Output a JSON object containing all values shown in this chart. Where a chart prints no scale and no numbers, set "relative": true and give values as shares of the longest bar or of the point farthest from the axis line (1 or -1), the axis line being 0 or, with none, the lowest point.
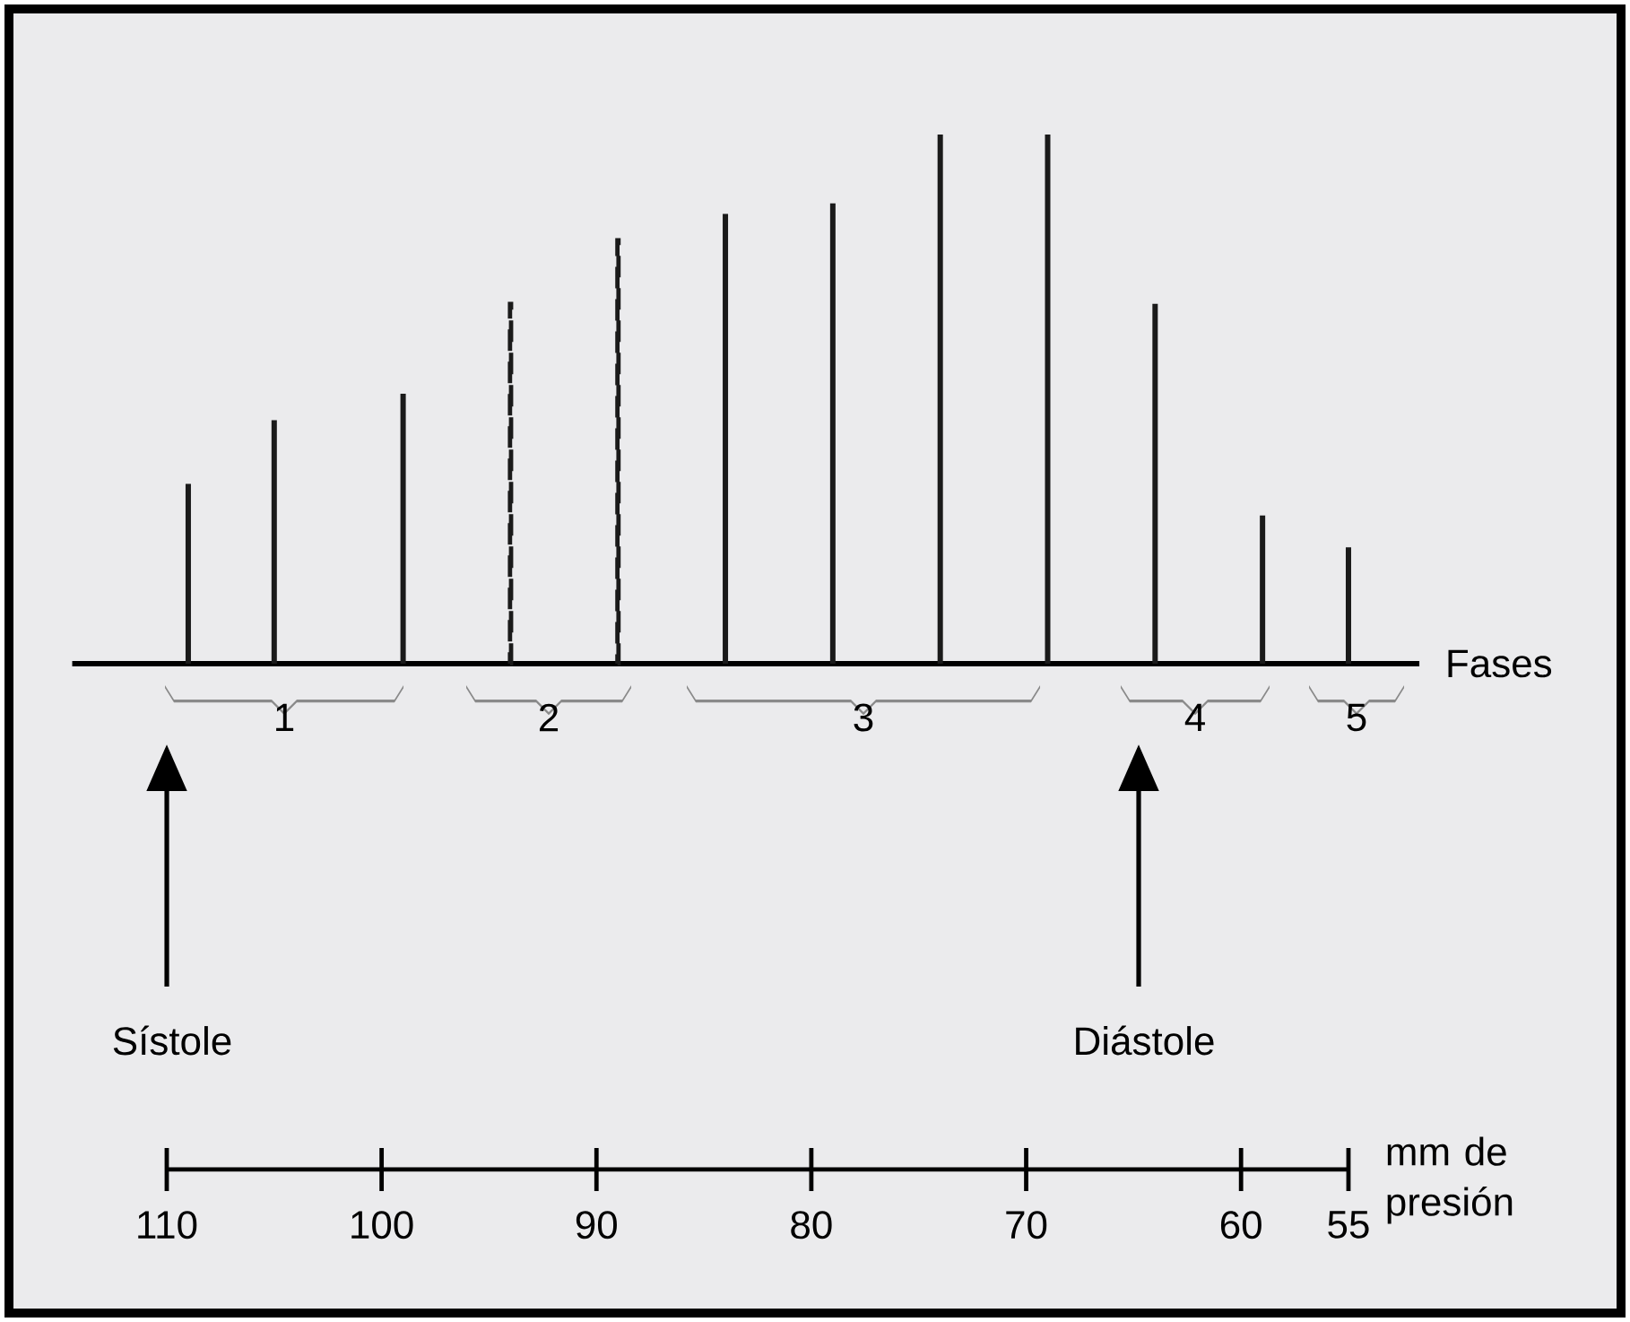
{
  "chart_data": {
    "type": "bar",
    "relative": true,
    "x": [
      109,
      105,
      99,
      94,
      89,
      84,
      79,
      74,
      69,
      64,
      59,
      55
    ],
    "xlim": [
      110,
      55
    ],
    "xticks": [
      110,
      100,
      90,
      80,
      70,
      60,
      55
    ],
    "xlabel": "mm de presión",
    "series": [
      {
        "color": "#1a1a1a",
        "line_style": "solid",
        "values": [
          0.34,
          0.46,
          0.51,
          null,
          null,
          0.85,
          0.87,
          1,
          1,
          0.68,
          0.28,
          0.22
        ]
      },
      {
        "color": "#1a1a1a",
        "line_style": "dashed",
        "values": [
          null,
          null,
          null,
          0.68,
          0.8,
          null,
          null,
          null,
          null,
          null,
          null,
          null
        ]
      }
    ],
    "annotations": [
      "Fases",
      "1",
      "2",
      "3",
      "4",
      "5",
      "Sístole",
      "Diástole"
    ],
    "grid": false
  }
}
